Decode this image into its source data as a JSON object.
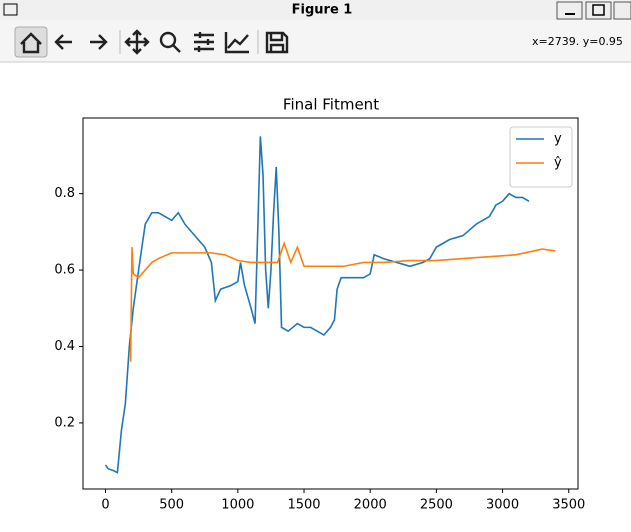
{
  "window": {
    "title": "Figure 1"
  },
  "toolbar": {
    "status": "x=2739. y=0.95"
  },
  "chart_data": {
    "type": "line",
    "title": "Final Fitment",
    "series": [
      {
        "name": "y",
        "color": "#1f77b4",
        "x": [
          0,
          20,
          60,
          90,
          120,
          150,
          180,
          210,
          250,
          300,
          350,
          400,
          450,
          500,
          550,
          600,
          650,
          700,
          750,
          800,
          830,
          870,
          950,
          1000,
          1020,
          1050,
          1100,
          1130,
          1150,
          1170,
          1190,
          1210,
          1230,
          1250,
          1270,
          1290,
          1310,
          1330,
          1380,
          1450,
          1500,
          1550,
          1600,
          1650,
          1700,
          1730,
          1750,
          1780,
          1850,
          1950,
          2000,
          2030,
          2100,
          2200,
          2300,
          2400,
          2450,
          2500,
          2600,
          2700,
          2800,
          2900,
          2950,
          3000,
          3050,
          3100,
          3150,
          3200
        ],
        "values": [
          0.09,
          0.08,
          0.075,
          0.07,
          0.18,
          0.25,
          0.4,
          0.5,
          0.6,
          0.72,
          0.75,
          0.75,
          0.74,
          0.73,
          0.75,
          0.72,
          0.7,
          0.68,
          0.66,
          0.62,
          0.52,
          0.55,
          0.56,
          0.57,
          0.62,
          0.56,
          0.5,
          0.46,
          0.7,
          0.95,
          0.85,
          0.6,
          0.5,
          0.6,
          0.75,
          0.87,
          0.7,
          0.45,
          0.44,
          0.46,
          0.45,
          0.45,
          0.44,
          0.43,
          0.45,
          0.47,
          0.55,
          0.58,
          0.58,
          0.58,
          0.59,
          0.64,
          0.63,
          0.62,
          0.61,
          0.62,
          0.63,
          0.66,
          0.68,
          0.69,
          0.72,
          0.74,
          0.77,
          0.78,
          0.8,
          0.79,
          0.79,
          0.78
        ]
      },
      {
        "name": "ŷ",
        "color": "#ff7f0e",
        "x": [
          190,
          200,
          210,
          250,
          300,
          350,
          400,
          500,
          600,
          800,
          900,
          1000,
          1100,
          1200,
          1300,
          1350,
          1400,
          1450,
          1500,
          1600,
          1800,
          1950,
          2100,
          2300,
          2500,
          2700,
          2900,
          3100,
          3300,
          3400
        ],
        "values": [
          0.36,
          0.66,
          0.59,
          0.58,
          0.6,
          0.62,
          0.63,
          0.645,
          0.645,
          0.645,
          0.64,
          0.625,
          0.62,
          0.62,
          0.62,
          0.67,
          0.62,
          0.66,
          0.61,
          0.61,
          0.61,
          0.62,
          0.62,
          0.625,
          0.625,
          0.63,
          0.635,
          0.64,
          0.655,
          0.65
        ]
      }
    ],
    "xlim": [
      -170,
      3570
    ],
    "ylim": [
      0.027,
      0.998
    ],
    "xticks": [
      0,
      500,
      1000,
      1500,
      2000,
      2500,
      3000,
      3500
    ],
    "yticks": [
      0.2,
      0.4,
      0.6,
      0.8
    ],
    "legend": "upper right"
  }
}
